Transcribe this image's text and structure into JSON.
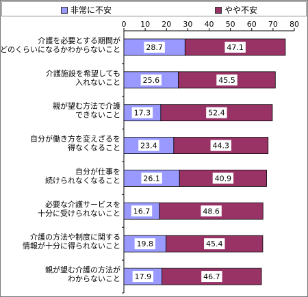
{
  "legend": {
    "items": [
      {
        "label": "非常に不安",
        "color": "#9999ff"
      },
      {
        "label": "やや不安",
        "color": "#993366"
      }
    ]
  },
  "chart_data": {
    "type": "bar",
    "orientation": "horizontal",
    "stacked": true,
    "xlim": [
      0,
      80
    ],
    "xticks": [
      0,
      10,
      20,
      30,
      40,
      50,
      60,
      70,
      80
    ],
    "grid": false,
    "legend_position": "top",
    "categories": [
      [
        "介護を必要とする期間が",
        "どのくらいになるかわからないこと"
      ],
      [
        "介護施設を希望しても",
        "入れないこと"
      ],
      [
        "親が望む方法で介護",
        "できないこと"
      ],
      [
        "自分が働き方を変えざるを",
        "得なくなること"
      ],
      [
        "自分が仕事を",
        "続けられなくなること"
      ],
      [
        "必要な介護サービスを",
        "十分に受けられないこと"
      ],
      [
        "介護の方法や制度に関する",
        "情報が十分に得られないこと"
      ],
      [
        "親が望む介護の方法が",
        "わからないこと"
      ]
    ],
    "series": [
      {
        "name": "非常に不安",
        "color": "#9999ff",
        "values": [
          28.7,
          25.6,
          17.3,
          23.4,
          26.1,
          16.7,
          19.8,
          17.9
        ]
      },
      {
        "name": "やや不安",
        "color": "#993366",
        "values": [
          47.1,
          45.5,
          52.4,
          44.3,
          40.9,
          48.6,
          45.4,
          46.7
        ]
      }
    ]
  }
}
